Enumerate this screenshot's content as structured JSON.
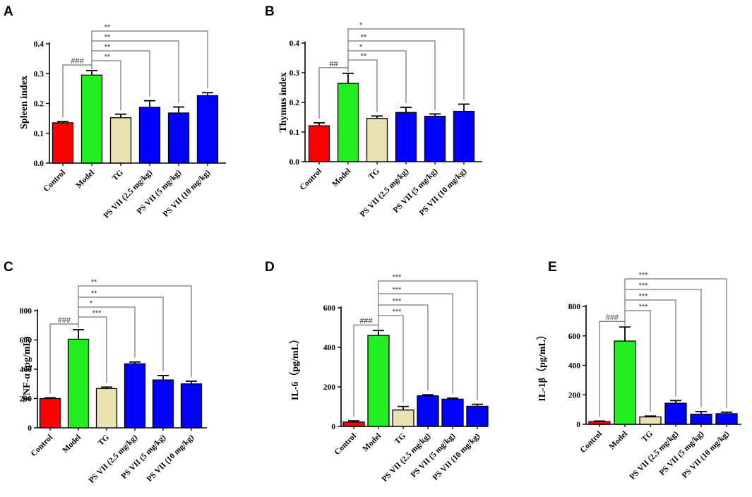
{
  "colors": {
    "control": "#ff0000",
    "model": "#22ee22",
    "tg": "#e8e2b0",
    "ps": "#0000ff",
    "axis": "#000000",
    "bracket": "#555555"
  },
  "chart_data": [
    {
      "type": "bar",
      "panel": "A",
      "ylabel": "Spleen index",
      "ylim": [
        0,
        0.4
      ],
      "yticks": [
        0.0,
        0.1,
        0.2,
        0.3,
        0.4
      ],
      "ytick_labels": [
        "0.0",
        "0.1",
        "0.2",
        "0.3",
        "0.4"
      ],
      "categories": [
        "Control",
        "Model",
        "TG",
        "PS VII (2.5 mg/kg)",
        "PS VII (5 mg/kg)",
        "PS VII (10 mg/kg)"
      ],
      "values": [
        0.135,
        0.295,
        0.152,
        0.187,
        0.168,
        0.226
      ],
      "errors": [
        0.004,
        0.015,
        0.012,
        0.022,
        0.02,
        0.01
      ],
      "significance": [
        {
          "from": 0,
          "to": 1,
          "label": "###"
        },
        {
          "from": 1,
          "to": 2,
          "label": "**"
        },
        {
          "from": 1,
          "to": 3,
          "label": "**"
        },
        {
          "from": 1,
          "to": 4,
          "label": "**"
        },
        {
          "from": 1,
          "to": 5,
          "label": "**"
        }
      ]
    },
    {
      "type": "bar",
      "panel": "B",
      "ylabel": "Thymus index",
      "ylim": [
        0,
        0.4
      ],
      "yticks": [
        0.0,
        0.1,
        0.2,
        0.3,
        0.4
      ],
      "ytick_labels": [
        "0.0",
        "0.1",
        "0.2",
        "0.3",
        "0.4"
      ],
      "categories": [
        "Control",
        "Model",
        "TG",
        "PS VII (2.5 mg/kg)",
        "PS VII (5 mg/kg)",
        "PS VII (10 mg/kg)"
      ],
      "values": [
        0.121,
        0.264,
        0.146,
        0.166,
        0.153,
        0.17
      ],
      "errors": [
        0.01,
        0.034,
        0.008,
        0.017,
        0.008,
        0.024
      ],
      "significance": [
        {
          "from": 0,
          "to": 1,
          "label": "##"
        },
        {
          "from": 1,
          "to": 2,
          "label": "**"
        },
        {
          "from": 1,
          "to": 3,
          "label": "*"
        },
        {
          "from": 1,
          "to": 4,
          "label": "**"
        },
        {
          "from": 1,
          "to": 5,
          "label": "*"
        }
      ]
    },
    {
      "type": "bar",
      "panel": "C",
      "ylabel": "TNF-α (pg/mL)",
      "ylim": [
        0,
        800
      ],
      "yticks": [
        0,
        200,
        400,
        600,
        800
      ],
      "ytick_labels": [
        "0",
        "200",
        "400",
        "600",
        "800"
      ],
      "categories": [
        "Control",
        "Model",
        "TG",
        "PS VII (2.5 mg/kg)",
        "PS VII (5 mg/kg)",
        "PS VII (10 mg/kg)"
      ],
      "values": [
        200,
        605,
        268,
        437,
        327,
        300
      ],
      "errors": [
        5,
        65,
        10,
        12,
        30,
        18
      ],
      "significance": [
        {
          "from": 0,
          "to": 1,
          "label": "###"
        },
        {
          "from": 1,
          "to": 2,
          "label": "***"
        },
        {
          "from": 1,
          "to": 3,
          "label": "*"
        },
        {
          "from": 1,
          "to": 4,
          "label": "**"
        },
        {
          "from": 1,
          "to": 5,
          "label": "**"
        }
      ]
    },
    {
      "type": "bar",
      "panel": "D",
      "ylabel": "IL-6（pg/mL）",
      "ylim": [
        0,
        600
      ],
      "yticks": [
        0,
        200,
        400,
        600
      ],
      "ytick_labels": [
        "0",
        "200",
        "400",
        "600"
      ],
      "categories": [
        "Control",
        "Model",
        "TG",
        "PS VII (2.5 mg/kg)",
        "PS VII (5 mg/kg)",
        "PS VII (10 mg/kg)"
      ],
      "values": [
        22,
        460,
        83,
        155,
        138,
        102
      ],
      "errors": [
        6,
        25,
        18,
        5,
        5,
        10
      ],
      "significance": [
        {
          "from": 0,
          "to": 1,
          "label": "###"
        },
        {
          "from": 1,
          "to": 2,
          "label": "***"
        },
        {
          "from": 1,
          "to": 3,
          "label": "***"
        },
        {
          "from": 1,
          "to": 4,
          "label": "***"
        },
        {
          "from": 1,
          "to": 5,
          "label": "***"
        }
      ]
    },
    {
      "type": "bar",
      "panel": "E",
      "ylabel": "IL-1β（pg/mL）",
      "ylim": [
        0,
        800
      ],
      "yticks": [
        0,
        200,
        400,
        600,
        800
      ],
      "ytick_labels": [
        "0",
        "200",
        "400",
        "600",
        "800"
      ],
      "categories": [
        "Control",
        "Model",
        "TG",
        "PS VII (2.5 mg/kg)",
        "PS VII (5 mg/kg)",
        "PS VII (10 mg/kg)"
      ],
      "values": [
        18,
        565,
        50,
        143,
        68,
        72
      ],
      "errors": [
        4,
        95,
        6,
        18,
        18,
        10
      ],
      "significance": [
        {
          "from": 0,
          "to": 1,
          "label": "###"
        },
        {
          "from": 1,
          "to": 2,
          "label": "***"
        },
        {
          "from": 1,
          "to": 3,
          "label": "***"
        },
        {
          "from": 1,
          "to": 4,
          "label": "***"
        },
        {
          "from": 1,
          "to": 5,
          "label": "***"
        }
      ]
    }
  ]
}
